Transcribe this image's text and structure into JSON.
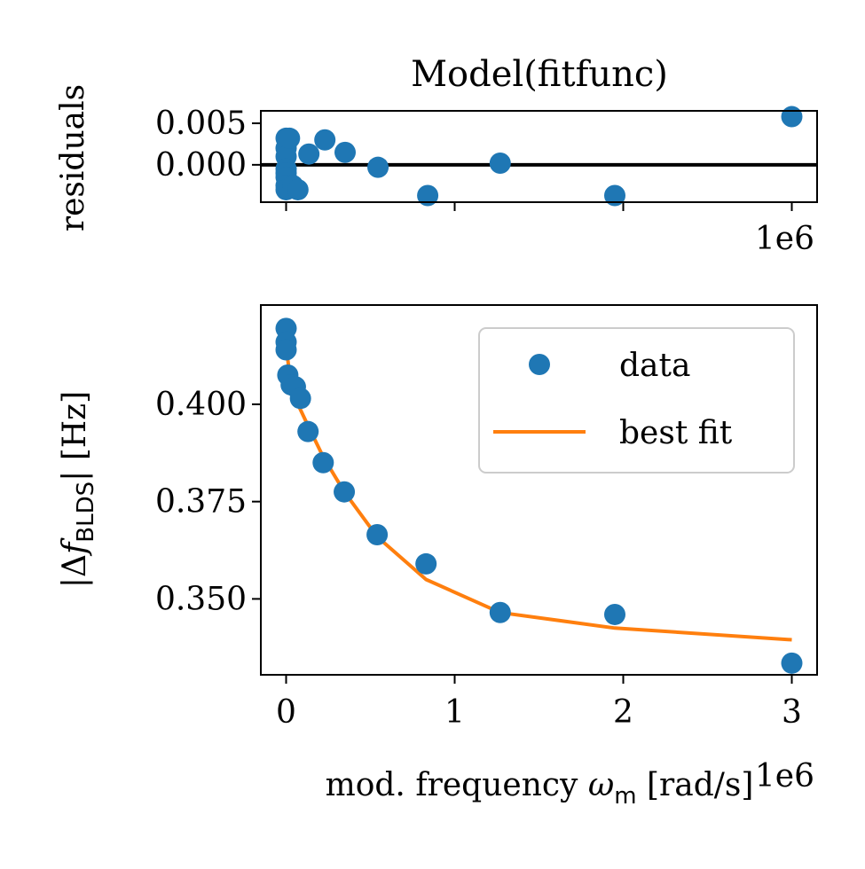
{
  "colors": {
    "data": "#1f77b4",
    "fit": "#ff7f0e",
    "axis": "#000000"
  },
  "chart_data": [
    {
      "type": "scatter",
      "title": "Model(fitfunc)",
      "ylabel": "residuals",
      "xlabel": "",
      "offset_label": "1e6",
      "xlim": [
        -150000,
        3150000
      ],
      "ylim": [
        -0.0045,
        0.0065
      ],
      "yticks": [
        0.0,
        0.005
      ],
      "ytick_labels": [
        "0.000",
        "0.005"
      ],
      "xticks": [
        0,
        1000000,
        2000000,
        3000000
      ],
      "zero_line": true,
      "series": [
        {
          "x": [
            0,
            0,
            0,
            0,
            0,
            0,
            0,
            0,
            20000,
            40000,
            70000,
            135000,
            230000,
            350000,
            545000,
            840000,
            1270000,
            1950000,
            3000000
          ],
          "y": [
            0.0032,
            0.002,
            0.001,
            -0.0005,
            -0.001,
            -0.0015,
            -0.0025,
            -0.003,
            0.0032,
            -0.0025,
            -0.003,
            0.0013,
            0.003,
            0.0015,
            -0.0003,
            -0.0037,
            0.0002,
            -0.0037,
            0.0058
          ]
        }
      ]
    },
    {
      "type": "line",
      "title": "",
      "xlabel": "mod. frequency",
      "xlabel_symbol": "ω",
      "xlabel_sub": "m",
      "xlabel_unit": "[rad/s]",
      "ylabel_prefix": "|Δ",
      "ylabel_symbol": "f",
      "ylabel_sub": "BLDS",
      "ylabel_suffix": "| [Hz]",
      "offset_label": "1e6",
      "xlim": [
        -150000,
        3150000
      ],
      "ylim": [
        0.3305,
        0.4255
      ],
      "xticks": [
        0,
        1000000,
        2000000,
        3000000
      ],
      "xtick_labels": [
        "0",
        "1",
        "2",
        "3"
      ],
      "yticks": [
        0.35,
        0.375,
        0.4
      ],
      "ytick_labels": [
        "0.350",
        "0.375",
        "0.400"
      ],
      "legend": {
        "placement": "upper right",
        "entries": [
          "data",
          "best fit"
        ]
      },
      "series": [
        {
          "name": "data",
          "style": "markers",
          "x": [
            0,
            0,
            0,
            10000,
            30000,
            55000,
            85000,
            130000,
            220000,
            345000,
            540000,
            830000,
            1270000,
            1950000,
            3000000
          ],
          "y": [
            0.4195,
            0.416,
            0.414,
            0.4075,
            0.405,
            0.4045,
            0.4015,
            0.393,
            0.385,
            0.3775,
            0.3665,
            0.359,
            0.3465,
            0.346,
            0.3335
          ]
        },
        {
          "name": "best fit",
          "style": "line",
          "x": [
            0,
            5000,
            15000,
            35000,
            70000,
            130000,
            220000,
            345000,
            540000,
            830000,
            1270000,
            1950000,
            3000000
          ],
          "y": [
            0.4175,
            0.4135,
            0.4095,
            0.405,
            0.4,
            0.3945,
            0.3865,
            0.3775,
            0.366,
            0.355,
            0.3465,
            0.3425,
            0.3395
          ]
        }
      ]
    }
  ]
}
